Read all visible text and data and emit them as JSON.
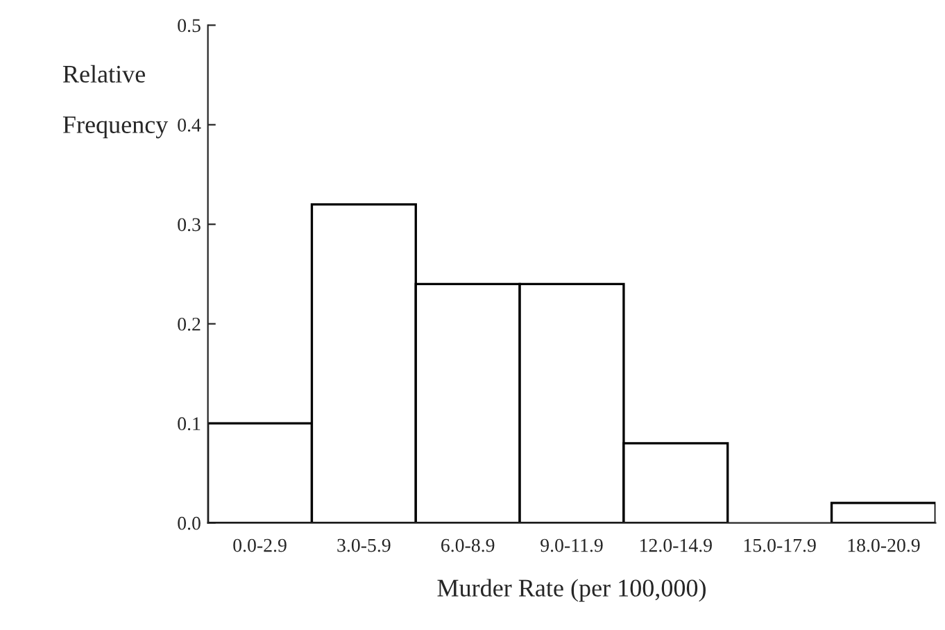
{
  "chart_data": {
    "type": "bar",
    "ylabel": "Relative\nFrequency",
    "xlabel": "Murder Rate (per 100,000)",
    "categories": [
      "0.0-2.9",
      "3.0-5.9",
      "6.0-8.9",
      "9.0-11.9",
      "12.0-14.9",
      "15.0-17.9",
      "18.0-20.9"
    ],
    "values": [
      0.1,
      0.32,
      0.24,
      0.24,
      0.08,
      0.0,
      0.02
    ],
    "color": "#ffffff",
    "ylim": [
      0,
      0.5
    ],
    "yticks": [
      {
        "value": 0,
        "label": "0.0"
      },
      {
        "value": 0.1,
        "label": "0.1"
      },
      {
        "value": 0.2,
        "label": "0.2"
      },
      {
        "value": 0.3,
        "label": "0.3"
      },
      {
        "value": 0.4,
        "label": "0.4"
      },
      {
        "value": 0.5,
        "label": "0.5"
      }
    ],
    "grid": false
  }
}
